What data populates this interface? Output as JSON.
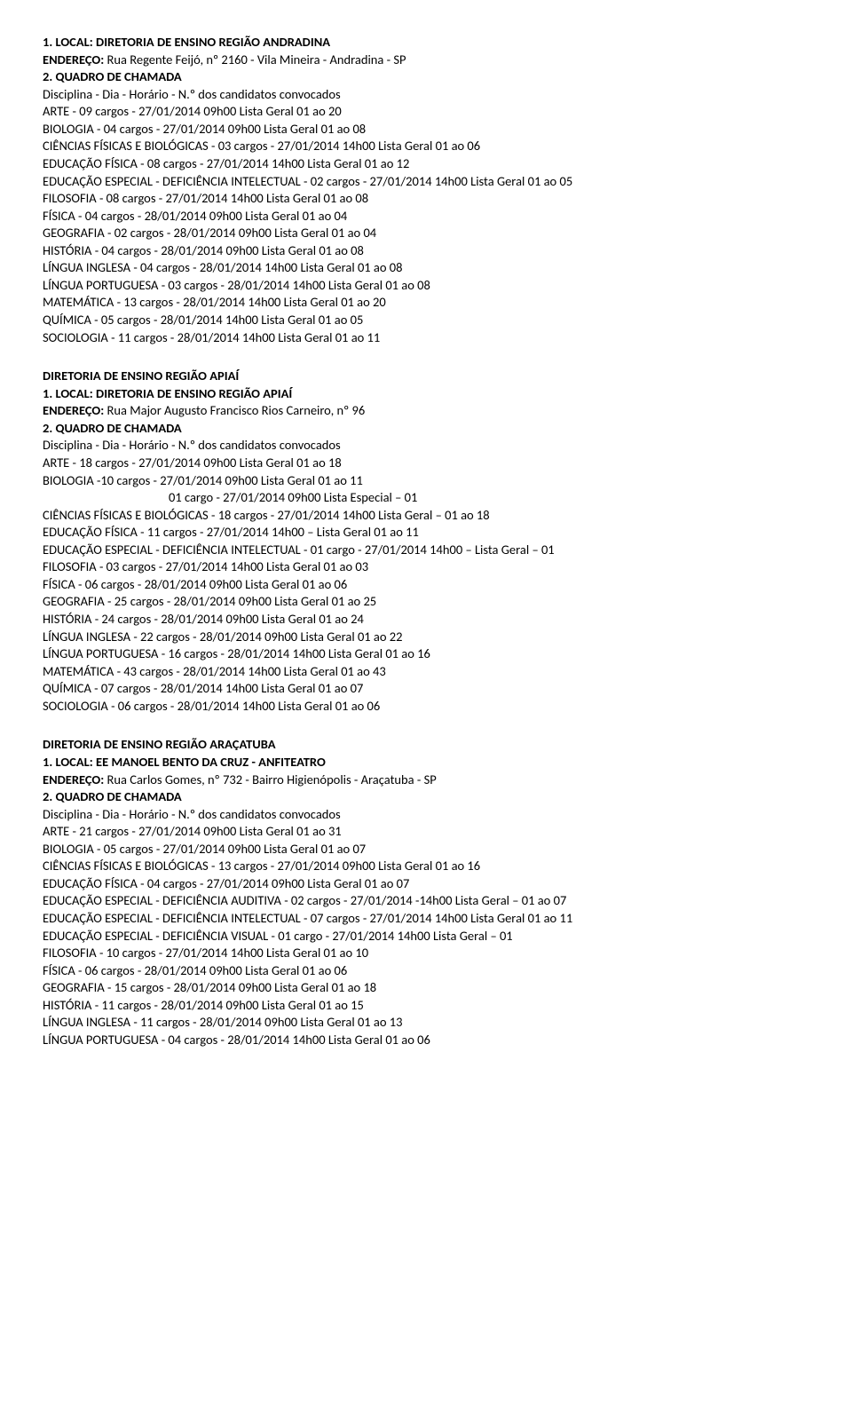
{
  "sections": [
    {
      "lines": [
        {
          "bold": true,
          "text": "1. LOCAL: DIRETORIA DE ENSINO REGIÃO ANDRADINA"
        },
        {
          "text_parts": [
            {
              "bold": true,
              "t": "ENDEREÇO: "
            },
            {
              "t": "Rua Regente Feijó, nº 2160 - Vila Mineira - Andradina - SP"
            }
          ]
        },
        {
          "bold": true,
          "text": "2. QUADRO DE CHAMADA"
        },
        {
          "text": "Disciplina - Dia - Horário - N.º dos candidatos convocados"
        },
        {
          "text": "ARTE - 09 cargos - 27/01/2014 09h00 Lista Geral 01 ao 20"
        },
        {
          "text": "BIOLOGIA - 04 cargos - 27/01/2014 09h00 Lista Geral 01 ao 08"
        },
        {
          "text": "CIÊNCIAS FÍSICAS E BIOLÓGICAS - 03 cargos - 27/01/2014 14h00 Lista Geral 01 ao 06"
        },
        {
          "text": "EDUCAÇÃO FÍSICA - 08 cargos - 27/01/2014 14h00 Lista Geral 01 ao 12"
        },
        {
          "text": "EDUCAÇÃO ESPECIAL - DEFICIÊNCIA INTELECTUAL - 02 cargos - 27/01/2014 14h00 Lista Geral 01 ao 05"
        },
        {
          "text": "FILOSOFIA - 08 cargos - 27/01/2014 14h00 Lista Geral 01 ao 08"
        },
        {
          "text": "FÍSICA - 04 cargos - 28/01/2014 09h00 Lista Geral 01 ao 04"
        },
        {
          "text": "GEOGRAFIA - 02 cargos - 28/01/2014 09h00 Lista Geral 01 ao 04"
        },
        {
          "text": "HISTÓRIA - 04 cargos - 28/01/2014 09h00 Lista Geral 01 ao 08"
        },
        {
          "text": "LÍNGUA INGLESA - 04 cargos - 28/01/2014 14h00 Lista Geral 01 ao 08"
        },
        {
          "text": "LÍNGUA PORTUGUESA - 03 cargos - 28/01/2014 14h00 Lista Geral 01 ao 08"
        },
        {
          "text": "MATEMÁTICA - 13 cargos - 28/01/2014 14h00 Lista Geral 01 ao 20"
        },
        {
          "text": "QUÍMICA - 05 cargos - 28/01/2014 14h00 Lista Geral 01 ao 05"
        },
        {
          "text": "SOCIOLOGIA - 11 cargos - 28/01/2014 14h00 Lista Geral 01 ao 11"
        }
      ]
    },
    {
      "lines": [
        {
          "bold": true,
          "text": "DIRETORIA DE ENSINO REGIÃO APIAÍ"
        },
        {
          "bold": true,
          "text": "1. LOCAL: DIRETORIA DE ENSINO REGIÃO APIAÍ"
        },
        {
          "text_parts": [
            {
              "bold": true,
              "t": "ENDEREÇO: "
            },
            {
              "t": "Rua Major Augusto Francisco Rios Carneiro, nº 96"
            }
          ]
        },
        {
          "bold": true,
          "text": "2. QUADRO DE CHAMADA"
        },
        {
          "text": "Disciplina - Dia - Horário - N.º dos candidatos convocados"
        },
        {
          "text": "ARTE - 18 cargos - 27/01/2014 09h00 Lista Geral 01 ao 18"
        },
        {
          "text": "BIOLOGIA -10 cargos - 27/01/2014 09h00 Lista Geral 01 ao 11"
        },
        {
          "indent": true,
          "text": "01 cargo - 27/01/2014 09h00 Lista Especial – 01"
        },
        {
          "text": "CIÊNCIAS FÍSICAS E BIOLÓGICAS - 18 cargos - 27/01/2014 14h00 Lista Geral – 01 ao 18"
        },
        {
          "text": "EDUCAÇÃO FÍSICA - 11 cargos - 27/01/2014 14h00 – Lista Geral 01 ao 11"
        },
        {
          "text": "EDUCAÇÃO ESPECIAL - DEFICIÊNCIA INTELECTUAL - 01 cargo - 27/01/2014 14h00 – Lista Geral – 01"
        },
        {
          "text": "FILOSOFIA - 03 cargos - 27/01/2014 14h00 Lista Geral 01 ao 03"
        },
        {
          "text": "FÍSICA - 06 cargos - 28/01/2014 09h00 Lista Geral 01 ao 06"
        },
        {
          "text": "GEOGRAFIA - 25 cargos - 28/01/2014 09h00 Lista Geral 01 ao 25"
        },
        {
          "text": "HISTÓRIA - 24 cargos - 28/01/2014 09h00 Lista Geral 01 ao 24"
        },
        {
          "text": "LÍNGUA INGLESA - 22 cargos - 28/01/2014 09h00 Lista Geral 01 ao 22"
        },
        {
          "text": "LÍNGUA PORTUGUESA - 16 cargos - 28/01/2014 14h00 Lista Geral 01 ao 16"
        },
        {
          "text": "MATEMÁTICA - 43 cargos - 28/01/2014 14h00 Lista Geral 01 ao 43"
        },
        {
          "text": "QUÍMICA - 07 cargos - 28/01/2014 14h00 Lista Geral 01 ao 07"
        },
        {
          "text": "SOCIOLOGIA - 06 cargos - 28/01/2014 14h00 Lista Geral 01 ao 06"
        }
      ]
    },
    {
      "lines": [
        {
          "bold": true,
          "text": "DIRETORIA DE ENSINO REGIÃO ARAÇATUBA"
        },
        {
          "bold": true,
          "text": "1. LOCAL: EE MANOEL BENTO DA CRUZ - ANFITEATRO"
        },
        {
          "text_parts": [
            {
              "bold": true,
              "t": "ENDEREÇO: "
            },
            {
              "t": "Rua Carlos Gomes, nº 732 - Bairro Higienópolis - Araçatuba - SP"
            }
          ]
        },
        {
          "bold": true,
          "text": "2. QUADRO DE CHAMADA"
        },
        {
          "text": "Disciplina - Dia - Horário - N.º dos candidatos convocados"
        },
        {
          "text": "ARTE - 21 cargos - 27/01/2014 09h00 Lista Geral 01 ao 31"
        },
        {
          "text": "BIOLOGIA - 05 cargos - 27/01/2014 09h00 Lista Geral 01 ao 07"
        },
        {
          "text": "CIÊNCIAS FÍSICAS E BIOLÓGICAS - 13 cargos - 27/01/2014 09h00 Lista Geral 01 ao 16"
        },
        {
          "text": "EDUCAÇÃO FÍSICA - 04 cargos - 27/01/2014 09h00 Lista Geral 01 ao 07"
        },
        {
          "text": "EDUCAÇÃO ESPECIAL - DEFICIÊNCIA AUDITIVA - 02 cargos - 27/01/2014 -14h00 Lista Geral – 01 ao 07"
        },
        {
          "text": "EDUCAÇÃO ESPECIAL - DEFICIÊNCIA INTELECTUAL - 07 cargos - 27/01/2014 14h00 Lista Geral 01 ao 11"
        },
        {
          "text": "EDUCAÇÃO ESPECIAL - DEFICIÊNCIA VISUAL - 01 cargo - 27/01/2014 14h00 Lista Geral – 01"
        },
        {
          "text": "FILOSOFIA - 10 cargos - 27/01/2014 14h00 Lista Geral 01 ao 10"
        },
        {
          "text": "FÍSICA - 06 cargos - 28/01/2014 09h00 Lista Geral 01 ao 06"
        },
        {
          "text": "GEOGRAFIA - 15 cargos - 28/01/2014 09h00 Lista Geral 01 ao 18"
        },
        {
          "text": "HISTÓRIA - 11 cargos - 28/01/2014 09h00 Lista Geral 01 ao 15"
        },
        {
          "text": "LÍNGUA INGLESA - 11 cargos - 28/01/2014 09h00 Lista Geral 01 ao 13"
        },
        {
          "text": "LÍNGUA PORTUGUESA - 04 cargos - 28/01/2014 14h00 Lista Geral 01 ao 06"
        }
      ]
    }
  ]
}
